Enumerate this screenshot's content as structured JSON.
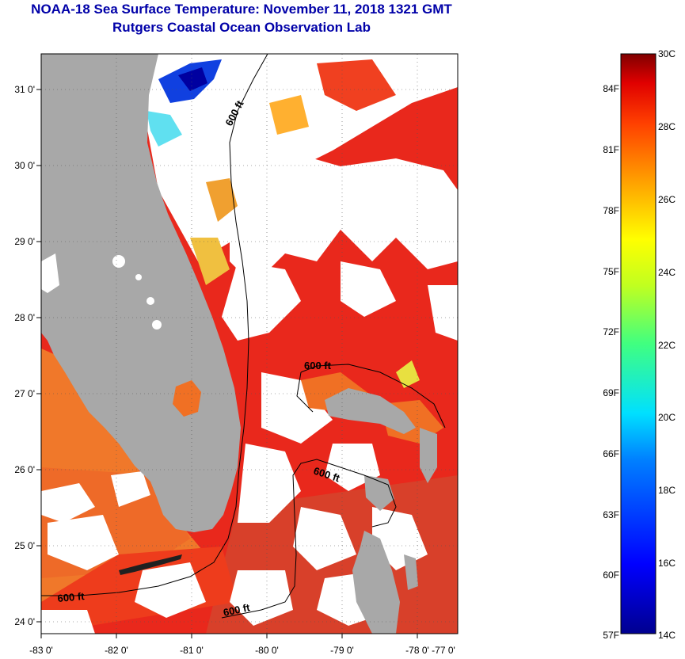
{
  "title": "NOAA-18 Sea Surface Temperature:  November 11, 2018 1321 GMT",
  "subtitle": "Rutgers Coastal Ocean Observation Lab",
  "axes": {
    "x_ticks": [
      "-83 0'",
      "-82 0'",
      "-81 0'",
      "-80 0'",
      "-79 0'",
      "-78 0'",
      "-77 0'"
    ],
    "y_ticks": [
      "31 0'",
      "30 0'",
      "29 0'",
      "28 0'",
      "27 0'",
      "26 0'",
      "25 0'",
      "24 0'"
    ]
  },
  "contours": {
    "label": "600 ft",
    "labels": [
      "600 ft",
      "600 ft",
      "600 ft",
      "600 ft",
      "600 ft"
    ]
  },
  "colorbar": {
    "celsius": [
      "30C",
      "28C",
      "26C",
      "24C",
      "22C",
      "20C",
      "18C",
      "16C",
      "14C"
    ],
    "fahrenheit": [
      "84F",
      "81F",
      "78F",
      "75F",
      "72F",
      "69F",
      "66F",
      "63F",
      "60F",
      "57F"
    ],
    "min_c": 14,
    "max_c": 30
  },
  "colors": {
    "title": "#0000a8",
    "land": "#a8a8a8",
    "cloud": "#ffffff",
    "warm": "#f03c10",
    "hot": "#e8201a",
    "orange": "#f07a20"
  }
}
